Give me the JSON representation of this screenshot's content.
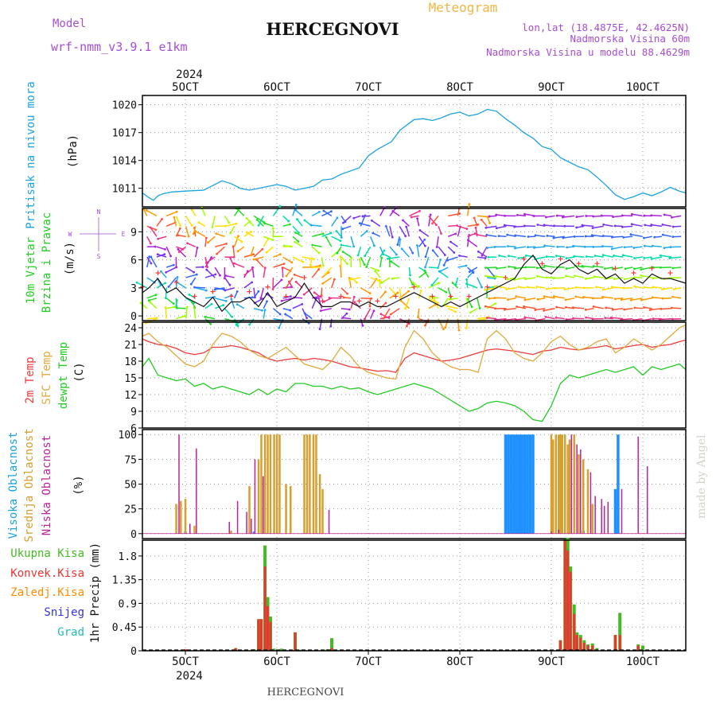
{
  "header": {
    "model_label": "Model",
    "model_name": "wrf-nmm_v3.9.1  e1km",
    "station": "HERCEGNOVI",
    "product": "Meteogram",
    "lonlat": "lon,lat (18.4875E, 42.4625N)",
    "elevation": "Nadmorska Visina 60m",
    "model_elevation": "Nadmorska Visina u modelu 88.4629m"
  },
  "footer": {
    "station": "HERCEGNOVI",
    "credit": "made by Angel"
  },
  "time_axis": {
    "year": "2024",
    "labels": [
      "5OCT",
      "6OCT",
      "7OCT",
      "8OCT",
      "9OCT",
      "10OCT"
    ],
    "start_day": 4.53,
    "end_day": 10.47
  },
  "colors": {
    "pressure": "#1aa3e0",
    "temp2m": "#ee3b3b",
    "sfc": "#e0a93d",
    "dewpt": "#22cc22",
    "cloud_high": "#1e90ff",
    "cloud_mid": "#d4a030",
    "cloud_low": "#c0229a",
    "precip_total": "#44bb22",
    "precip_conv": "#ee3333",
    "precip_ice": "#ff8c00",
    "precip_snow": "#3333dd",
    "precip_hail": "#22bbbb",
    "header_purple": "#a64dd6",
    "header_orange": "#f0b840"
  },
  "chart_data": [
    {
      "type": "line",
      "panel": "pressure",
      "ylabel_1": "Pritisak na nivou mora",
      "ylabel_2": "(hPa)",
      "ylim": [
        1009,
        1021
      ],
      "yticks": [
        "1011",
        "1014",
        "1017",
        "1020"
      ],
      "series": [
        {
          "x": [
            4.53,
            4.6,
            4.65,
            4.7,
            4.75,
            4.85,
            5.0,
            5.2,
            5.3,
            5.4,
            5.5,
            5.6,
            5.7,
            5.8,
            6.0,
            6.1,
            6.2,
            6.4,
            6.5,
            6.6,
            6.7,
            6.9,
            7.0,
            7.1,
            7.25,
            7.35,
            7.5,
            7.6,
            7.7,
            7.8,
            7.9,
            8.0,
            8.1,
            8.2,
            8.3,
            8.4,
            8.5,
            8.6,
            8.7,
            8.8,
            8.9,
            9.0,
            9.1,
            9.2,
            9.3,
            9.4,
            9.5,
            9.6,
            9.7,
            9.8,
            9.9,
            10.0,
            10.1,
            10.2,
            10.3,
            10.4,
            10.47
          ],
          "values": [
            1010.5,
            1010.0,
            1009.7,
            1010.2,
            1010.4,
            1010.6,
            1010.7,
            1010.8,
            1011.3,
            1011.8,
            1011.5,
            1011.0,
            1010.8,
            1011.0,
            1011.4,
            1011.2,
            1010.8,
            1011.2,
            1011.9,
            1012.0,
            1012.5,
            1013.2,
            1014.5,
            1015.2,
            1016.0,
            1017.3,
            1018.4,
            1018.5,
            1018.3,
            1018.6,
            1019.0,
            1019.2,
            1018.8,
            1019.0,
            1019.5,
            1019.3,
            1018.5,
            1017.8,
            1017.0,
            1016.4,
            1015.5,
            1015.2,
            1014.3,
            1013.8,
            1013.3,
            1013.0,
            1012.2,
            1011.3,
            1010.3,
            1009.8,
            1010.1,
            1010.5,
            1010.2,
            1010.6,
            1011.1,
            1010.7,
            1010.5
          ]
        }
      ]
    },
    {
      "type": "line",
      "panel": "wind",
      "ylabel_1": "10m Vjetar",
      "ylabel_2": "Brzina i Pravac",
      "ylabel_3": "(m/s)",
      "compass": [
        "N",
        "W",
        "E",
        "S"
      ],
      "ylim": [
        -0.5,
        11.5
      ],
      "yticks": [
        "0",
        "3",
        "6",
        "9"
      ],
      "series": [
        {
          "name": "speed",
          "x": [
            4.53,
            4.6,
            4.7,
            4.8,
            4.9,
            5.0,
            5.1,
            5.2,
            5.3,
            5.4,
            5.5,
            5.6,
            5.7,
            5.8,
            5.9,
            6.0,
            6.1,
            6.2,
            6.3,
            6.4,
            6.5,
            6.6,
            6.7,
            6.8,
            6.9,
            7.0,
            7.1,
            7.2,
            7.3,
            7.4,
            7.5,
            7.6,
            7.7,
            7.8,
            7.9,
            8.0,
            8.1,
            8.2,
            8.3,
            8.4,
            8.5,
            8.6,
            8.7,
            8.8,
            8.9,
            9.0,
            9.1,
            9.2,
            9.3,
            9.4,
            9.5,
            9.6,
            9.7,
            9.8,
            9.9,
            10.0,
            10.1,
            10.2,
            10.3,
            10.47
          ],
          "values": [
            2.5,
            3.0,
            4.0,
            2.5,
            3.0,
            2.0,
            1.5,
            1.0,
            2.0,
            0.5,
            1.5,
            1.5,
            2.0,
            1.0,
            2.5,
            1.0,
            1.5,
            2.0,
            3.5,
            2.0,
            1.0,
            1.0,
            1.5,
            1.5,
            1.0,
            1.5,
            1.0,
            1.0,
            1.5,
            2.0,
            2.5,
            2.0,
            1.5,
            1.0,
            1.5,
            1.0,
            1.5,
            2.0,
            2.5,
            3.0,
            3.5,
            4.0,
            5.5,
            6.5,
            5.0,
            4.5,
            5.5,
            6.0,
            5.0,
            4.5,
            5.0,
            4.0,
            4.5,
            3.5,
            4.0,
            3.5,
            4.5,
            4.0,
            4.0,
            3.5
          ]
        }
      ]
    },
    {
      "type": "line",
      "panel": "temperature",
      "ylabel_1": "2m Temp",
      "ylabel_2": "SFC Temp",
      "ylabel_3": "dewpt Temp",
      "ylabel_4": "(C)",
      "ylim": [
        6,
        25
      ],
      "yticks": [
        "6",
        "9",
        "12",
        "15",
        "18",
        "21",
        "24"
      ],
      "series": [
        {
          "name": "2m Temp",
          "x": [
            4.53,
            4.6,
            4.7,
            4.8,
            4.9,
            5.0,
            5.1,
            5.2,
            5.3,
            5.4,
            5.5,
            5.6,
            5.7,
            5.8,
            5.9,
            6.0,
            6.1,
            6.2,
            6.3,
            6.4,
            6.5,
            6.6,
            6.7,
            6.8,
            6.9,
            7.0,
            7.1,
            7.2,
            7.3,
            7.4,
            7.5,
            7.6,
            7.7,
            7.8,
            7.9,
            8.0,
            8.1,
            8.2,
            8.3,
            8.4,
            8.5,
            8.6,
            8.7,
            8.8,
            8.9,
            9.0,
            9.1,
            9.2,
            9.3,
            9.4,
            9.5,
            9.6,
            9.7,
            9.8,
            9.9,
            10.0,
            10.1,
            10.2,
            10.3,
            10.4,
            10.47
          ],
          "values": [
            22.0,
            21.5,
            21.0,
            20.8,
            20.3,
            19.5,
            19.2,
            19.5,
            20.5,
            20.5,
            20.8,
            20.5,
            20.0,
            19.5,
            18.5,
            18.0,
            18.3,
            18.5,
            18.2,
            18.5,
            18.3,
            18.0,
            17.5,
            17.0,
            16.8,
            16.5,
            16.2,
            16.3,
            16.0,
            18.5,
            19.5,
            19.0,
            18.5,
            18.0,
            18.2,
            18.5,
            19.0,
            19.5,
            20.0,
            20.2,
            20.0,
            19.8,
            19.5,
            19.2,
            19.8,
            20.0,
            20.5,
            20.2,
            20.0,
            20.3,
            20.5,
            20.8,
            20.2,
            20.5,
            20.8,
            21.0,
            20.5,
            20.8,
            21.0,
            21.5,
            21.8
          ]
        },
        {
          "name": "SFC Temp",
          "x": [
            4.53,
            4.6,
            4.7,
            4.8,
            4.9,
            5.0,
            5.1,
            5.2,
            5.3,
            5.4,
            5.5,
            5.6,
            5.7,
            5.8,
            5.9,
            6.0,
            6.1,
            6.2,
            6.3,
            6.4,
            6.5,
            6.6,
            6.7,
            6.8,
            6.9,
            7.0,
            7.1,
            7.2,
            7.3,
            7.4,
            7.5,
            7.6,
            7.7,
            7.8,
            7.9,
            8.0,
            8.1,
            8.2,
            8.3,
            8.4,
            8.5,
            8.6,
            8.7,
            8.8,
            8.9,
            9.0,
            9.1,
            9.2,
            9.3,
            9.4,
            9.5,
            9.6,
            9.7,
            9.8,
            9.9,
            10.0,
            10.1,
            10.2,
            10.3,
            10.4,
            10.47
          ],
          "values": [
            22.5,
            23.0,
            21.5,
            20.5,
            19.0,
            17.5,
            17.0,
            18.0,
            21.0,
            23.0,
            22.5,
            21.5,
            20.0,
            19.0,
            18.5,
            19.5,
            20.5,
            19.0,
            17.5,
            17.0,
            16.5,
            18.0,
            20.5,
            19.0,
            17.0,
            16.0,
            15.5,
            15.0,
            14.8,
            20.5,
            23.5,
            22.0,
            19.5,
            18.0,
            17.0,
            16.5,
            16.5,
            16.0,
            22.0,
            23.5,
            22.0,
            19.5,
            18.5,
            18.0,
            19.5,
            21.5,
            22.5,
            21.0,
            20.0,
            20.5,
            21.5,
            22.0,
            19.5,
            20.5,
            22.0,
            21.0,
            20.0,
            21.0,
            22.5,
            24.0,
            24.5
          ]
        },
        {
          "name": "dewpt Temp",
          "x": [
            4.53,
            4.6,
            4.7,
            4.8,
            4.9,
            5.0,
            5.1,
            5.2,
            5.3,
            5.4,
            5.5,
            5.6,
            5.7,
            5.8,
            5.9,
            6.0,
            6.1,
            6.2,
            6.3,
            6.4,
            6.5,
            6.6,
            6.7,
            6.8,
            6.9,
            7.0,
            7.1,
            7.2,
            7.3,
            7.4,
            7.5,
            7.6,
            7.7,
            7.8,
            7.9,
            8.0,
            8.1,
            8.2,
            8.3,
            8.4,
            8.5,
            8.6,
            8.7,
            8.8,
            8.9,
            9.0,
            9.1,
            9.2,
            9.3,
            9.4,
            9.5,
            9.6,
            9.7,
            9.8,
            9.9,
            10.0,
            10.1,
            10.2,
            10.3,
            10.4,
            10.47
          ],
          "values": [
            17.0,
            18.5,
            15.5,
            15.0,
            14.5,
            14.8,
            13.5,
            14.0,
            13.0,
            13.5,
            13.0,
            12.5,
            12.0,
            13.0,
            12.0,
            13.0,
            12.5,
            14.0,
            14.0,
            13.5,
            13.5,
            13.0,
            13.5,
            13.0,
            13.2,
            12.5,
            12.0,
            12.5,
            13.0,
            13.5,
            14.0,
            13.5,
            13.0,
            12.0,
            11.0,
            10.0,
            9.0,
            9.5,
            10.5,
            10.8,
            10.5,
            10.0,
            9.0,
            7.5,
            7.2,
            10.0,
            14.0,
            15.5,
            15.0,
            15.5,
            16.0,
            16.5,
            16.0,
            16.5,
            17.0,
            15.5,
            17.0,
            16.5,
            17.0,
            17.5,
            16.5
          ]
        }
      ]
    },
    {
      "type": "bar",
      "panel": "clouds",
      "ylabel_1": "Visoka Oblacnost",
      "ylabel_2": "Srednja Oblacnost",
      "ylabel_3": "Niska Oblacnost",
      "ylabel_4": "(%)",
      "ylim": [
        -5,
        105
      ],
      "yticks": [
        "0",
        "25",
        "50",
        "75",
        "100"
      ],
      "series": [
        {
          "name": "Visoka Oblacnost",
          "x": [
            5.0,
            5.75,
            8.5,
            8.53,
            8.56,
            8.59,
            8.62,
            8.65,
            8.68,
            8.71,
            8.74,
            8.77,
            8.8,
            9.1,
            9.35,
            9.7,
            9.73
          ],
          "values": [
            2,
            2,
            100,
            100,
            100,
            100,
            100,
            100,
            100,
            100,
            100,
            100,
            100,
            5,
            3,
            45,
            100
          ]
        },
        {
          "name": "Srednja Oblacnost",
          "x": [
            4.9,
            4.95,
            5.0,
            5.1,
            5.5,
            5.7,
            5.8,
            5.83,
            5.87,
            5.9,
            5.93,
            5.97,
            6.0,
            6.03,
            6.1,
            6.15,
            6.3,
            6.33,
            6.36,
            6.4,
            6.43,
            6.47,
            6.5,
            9.0,
            9.02,
            9.05,
            9.08,
            9.1,
            9.12,
            9.15,
            9.18,
            9.2,
            9.25,
            9.3,
            9.35,
            9.4,
            9.45
          ],
          "values": [
            30,
            33,
            35,
            8,
            3,
            48,
            75,
            100,
            100,
            100,
            100,
            100,
            100,
            100,
            50,
            48,
            100,
            100,
            100,
            100,
            100,
            60,
            45,
            100,
            95,
            100,
            100,
            100,
            100,
            100,
            90,
            95,
            100,
            80,
            75,
            65,
            30
          ]
        },
        {
          "name": "Niska Oblacnost",
          "x": [
            4.93,
            5.05,
            5.12,
            5.48,
            5.57,
            5.67,
            5.72,
            5.76,
            5.85,
            6.57,
            9.0,
            9.08,
            9.22,
            9.28,
            9.32,
            9.43,
            9.48,
            9.55,
            9.58,
            9.62,
            9.77,
            9.95,
            10.05
          ],
          "values": [
            100,
            10,
            86,
            12,
            33,
            22,
            15,
            75,
            58,
            24,
            2,
            4,
            100,
            90,
            85,
            62,
            38,
            35,
            28,
            32,
            45,
            98,
            68
          ]
        }
      ]
    },
    {
      "type": "bar",
      "panel": "precip",
      "ylabel_1": "1hr Precip (mm)",
      "legend": [
        "Ukupna Kisa",
        "Konvek.Kisa",
        "Zaledj.Kisa",
        "Snijeg",
        "Grad"
      ],
      "ylim": [
        0,
        2.1
      ],
      "yticks": [
        "0",
        "0.45",
        "0.9",
        "1.35",
        "1.8"
      ],
      "series": [
        {
          "name": "Ukupna Kisa",
          "x": [
            5.0,
            5.55,
            5.75,
            5.8,
            5.83,
            5.87,
            5.9,
            5.93,
            5.97,
            6.0,
            6.05,
            6.2,
            6.25,
            6.55,
            6.6,
            9.1,
            9.15,
            9.18,
            9.21,
            9.25,
            9.28,
            9.32,
            9.36,
            9.4,
            9.45,
            9.5,
            9.7,
            9.75,
            9.95,
            10.0
          ],
          "values": [
            0.03,
            0.05,
            0.03,
            0.6,
            0.6,
            2.0,
            1.02,
            0.65,
            0.04,
            0.01,
            0.04,
            0.35,
            0.02,
            0.03,
            0.24,
            0.2,
            2.12,
            2.14,
            1.6,
            0.88,
            0.35,
            0.3,
            0.2,
            0.12,
            0.14,
            0.05,
            0.3,
            0.72,
            0.12,
            0.1
          ]
        },
        {
          "name": "Konvek.Kisa",
          "x": [
            5.0,
            5.55,
            5.8,
            5.83,
            5.87,
            5.9,
            5.93,
            6.2,
            6.6,
            9.1,
            9.15,
            9.18,
            9.21,
            9.25,
            9.28,
            9.32,
            9.36,
            9.4,
            9.45,
            9.7,
            9.75,
            9.95
          ],
          "values": [
            0.03,
            0.05,
            0.6,
            0.6,
            1.6,
            0.85,
            0.55,
            0.35,
            0.05,
            0.2,
            2.1,
            1.9,
            1.5,
            0.7,
            0.3,
            0.25,
            0.15,
            0.1,
            0.1,
            0.3,
            0.3,
            0.1
          ]
        }
      ]
    }
  ]
}
